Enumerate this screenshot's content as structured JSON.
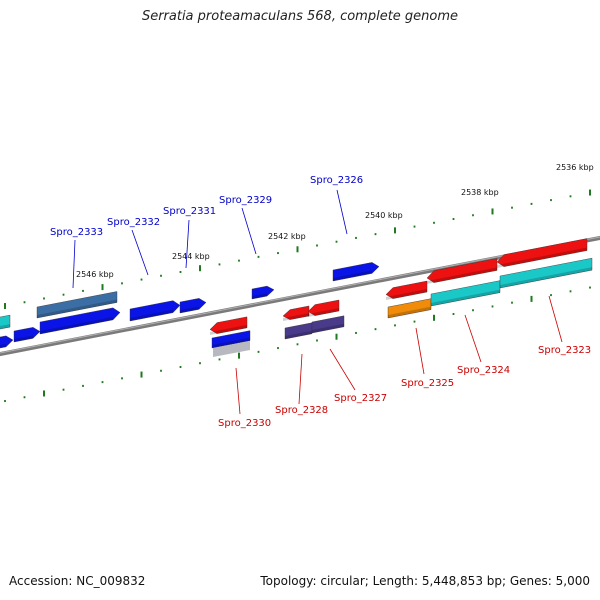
{
  "title": "Serratia proteamaculans 568, complete genome",
  "footer": {
    "accession": "Accession: NC_009832",
    "summary": "Topology: circular; Length: 5,448,853 bp; Genes: 5,000"
  },
  "colors": {
    "backbone": "#7a7a7a",
    "tick": "#1f7a1f",
    "forward_label": "#0000cc",
    "reverse_label": "#cc0000",
    "blue": "#0a14e6",
    "steel": "#3b6ea5",
    "red": "#ee1111",
    "cyan": "#1bc8c8",
    "orange": "#f08c0a",
    "indigo": "#4a3a8a"
  },
  "position_labels": [
    "2536 kbp",
    "2538 kbp",
    "2540 kbp",
    "2542 kbp",
    "2544 kbp",
    "2546 kbp"
  ],
  "gene_labels": [
    {
      "text": "Spro_2326",
      "strand": "forward"
    },
    {
      "text": "Spro_2329",
      "strand": "forward"
    },
    {
      "text": "Spro_2331",
      "strand": "forward"
    },
    {
      "text": "Spro_2332",
      "strand": "forward"
    },
    {
      "text": "Spro_2333",
      "strand": "forward"
    },
    {
      "text": "Spro_2323",
      "strand": "reverse"
    },
    {
      "text": "Spro_2324",
      "strand": "reverse"
    },
    {
      "text": "Spro_2325",
      "strand": "reverse"
    },
    {
      "text": "Spro_2327",
      "strand": "reverse"
    },
    {
      "text": "Spro_2328",
      "strand": "reverse"
    },
    {
      "text": "Spro_2330",
      "strand": "reverse"
    }
  ]
}
